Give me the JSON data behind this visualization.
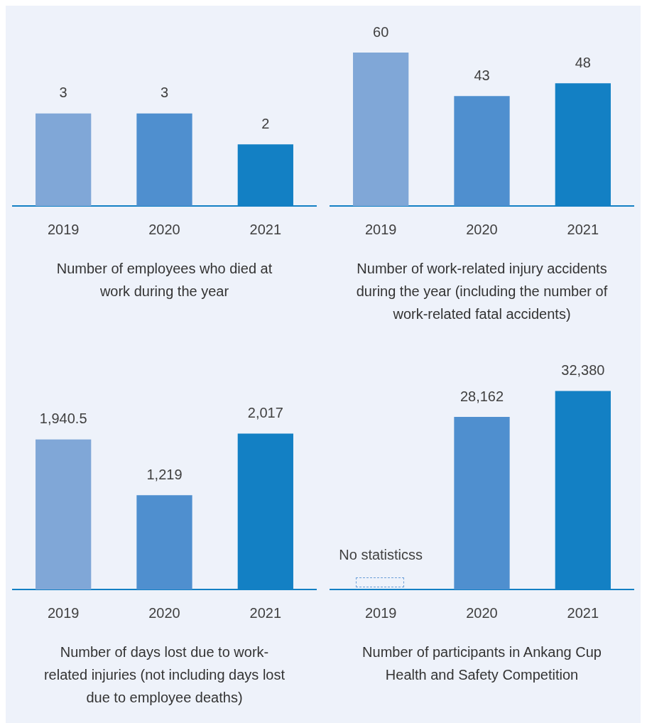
{
  "chart_data": [
    {
      "type": "bar",
      "title": "Number of employees who died at work during the year",
      "categories": [
        "2019",
        "2020",
        "2021"
      ],
      "values": [
        3,
        3,
        2
      ],
      "colors": [
        "#80a7d7",
        "#4f8fcf",
        "#1380c4"
      ],
      "tick_labels": "x",
      "data_labels": true,
      "grid": false,
      "legend": false
    },
    {
      "type": "bar",
      "title": "Number of work-related injury accidents during the year (including the number of work-related fatal accidents)",
      "categories": [
        "2019",
        "2020",
        "2021"
      ],
      "values": [
        60,
        43,
        48
      ],
      "colors": [
        "#80a7d7",
        "#4f8fcf",
        "#1380c4"
      ],
      "tick_labels": "x",
      "data_labels": true,
      "grid": false,
      "legend": false
    },
    {
      "type": "bar",
      "title": "Number of days lost due to work-related injuries (not including days lost due to employee deaths)",
      "categories": [
        "2019",
        "2020",
        "2021"
      ],
      "values": [
        1940.5,
        1219,
        2017
      ],
      "value_labels": [
        "1,940.5",
        "1,219",
        "2,017"
      ],
      "colors": [
        "#80a7d7",
        "#4f8fcf",
        "#1380c4"
      ],
      "tick_labels": "x",
      "grid": false,
      "legend": false
    },
    {
      "type": "bar",
      "title": "Number of participants in Ankang Cup Health and Safety Competition",
      "categories": [
        "2019",
        "2020",
        "2021"
      ],
      "values": [
        null,
        28162,
        32380
      ],
      "value_labels": [
        null,
        "28,162",
        "32,380"
      ],
      "colors": [
        "#80a7d7",
        "#4f8fcf",
        "#1380c4"
      ],
      "tick_labels": "x",
      "grid": false,
      "legend": false,
      "annotations": [
        "No statisticss"
      ]
    }
  ]
}
